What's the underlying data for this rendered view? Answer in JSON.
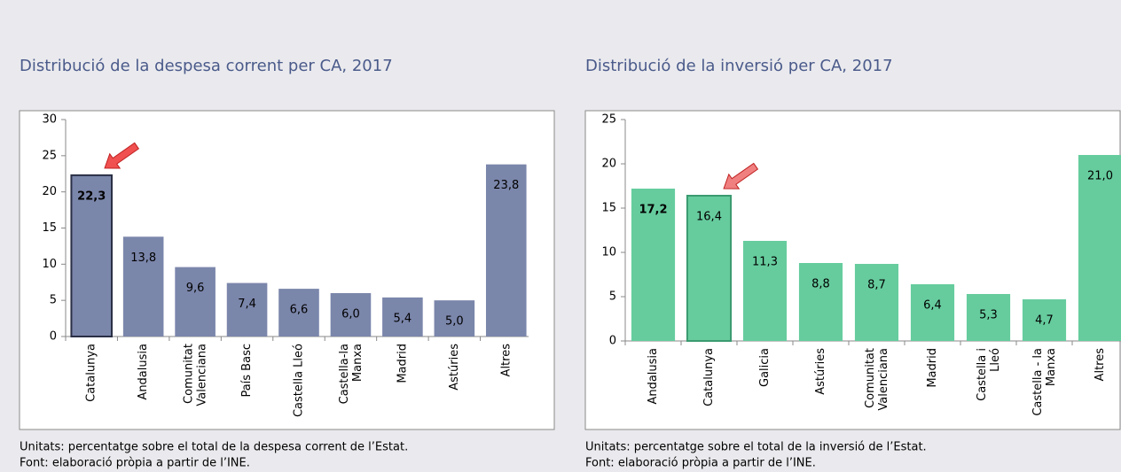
{
  "chart_data": [
    {
      "type": "bar",
      "title": "Distribució de la despesa corrent per CA, 2017",
      "categories": [
        "Catalunya",
        "Andalusia",
        "Comunitat\nValenciana",
        "País Basc",
        "Castella Lleó",
        "Castella-la\nManxa",
        "Madrid",
        "Astúries",
        "Altres"
      ],
      "values": [
        22.3,
        13.8,
        9.6,
        7.4,
        6.6,
        6.0,
        5.4,
        5.0,
        23.8
      ],
      "value_labels": [
        "22,3",
        "13,8",
        "9,6",
        "7,4",
        "6,6",
        "6,0",
        "5,4",
        "5,0",
        "23,8"
      ],
      "color": "#7b86ab",
      "label_color": "#ffffff",
      "highlight_index": 0,
      "bold_label_index": 0,
      "ylim": [
        0,
        30
      ],
      "yticks": [
        0,
        5,
        10,
        15,
        20,
        25,
        30
      ],
      "notes": [
        "Unitats: percentatge sobre el total de la despesa corrent de l’Estat.",
        "Font: elaboració pròpia a partir de l’INE."
      ]
    },
    {
      "type": "bar",
      "title": "Distribució de la inversió per CA, 2017",
      "categories": [
        "Andalusia",
        "Catalunya",
        "Galicia",
        "Astúries",
        "Comunitat\nValenciana",
        "Madrid",
        "Castella i\nLleó",
        "Castella - la\nManxa",
        "Altres"
      ],
      "values": [
        17.2,
        16.4,
        11.3,
        8.8,
        8.7,
        6.4,
        5.3,
        4.7,
        21.0
      ],
      "value_labels": [
        "17,2",
        "16,4",
        "11,3",
        "8,8",
        "8,7",
        "6,4",
        "5,3",
        "4,7",
        "21,0"
      ],
      "color": "#66cc9e",
      "label_color": "#000000",
      "highlight_index": 1,
      "bold_label_index": 0,
      "ylim": [
        0,
        25
      ],
      "yticks": [
        0,
        5,
        10,
        15,
        20,
        25
      ],
      "notes": [
        "Unitats: percentatge sobre el total de la inversió de l’Estat.",
        "Font: elaboració pròpia a partir de l’INE."
      ]
    }
  ]
}
